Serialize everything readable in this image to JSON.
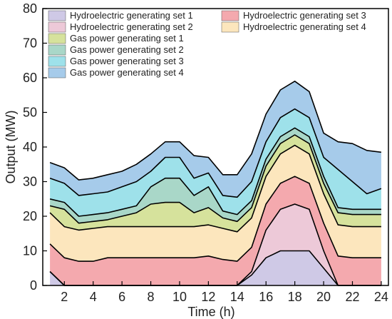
{
  "chart_data": {
    "type": "area",
    "stacked": true,
    "title": "",
    "xlabel": "Time (h)",
    "ylabel": "Output (MW)",
    "xlim": [
      0.5,
      24.5
    ],
    "ylim": [
      0,
      80
    ],
    "xticks": [
      2,
      4,
      6,
      8,
      10,
      12,
      14,
      16,
      18,
      20,
      22,
      24
    ],
    "yticks": [
      0,
      10,
      20,
      30,
      40,
      50,
      60,
      70,
      80
    ],
    "grid": false,
    "legend_position": "top-left",
    "x": [
      1,
      2,
      3,
      4,
      5,
      6,
      7,
      8,
      9,
      10,
      11,
      12,
      13,
      14,
      15,
      16,
      17,
      18,
      19,
      20,
      21,
      22,
      23,
      24
    ],
    "series": [
      {
        "name": "Hydroelectric generating set 1",
        "color": "#cfc9e6",
        "values": [
          4,
          0,
          0,
          0,
          0,
          0,
          0,
          0,
          0,
          0,
          0,
          0,
          0,
          0,
          3,
          8,
          10,
          10,
          10,
          5,
          0,
          0,
          0,
          0
        ]
      },
      {
        "name": "Hydroelectric generating set 2",
        "color": "#edc9d8",
        "values": [
          0,
          0,
          0,
          0,
          0,
          0,
          0,
          0,
          0,
          0,
          0,
          0,
          0,
          0,
          1,
          8,
          12,
          13.5,
          12,
          5,
          0,
          0,
          0,
          0
        ]
      },
      {
        "name": "Hydroelectric generating set 3",
        "color": "#f4a9ae",
        "values": [
          8,
          8,
          7,
          7,
          8,
          8,
          8,
          8,
          8,
          8,
          8,
          8.5,
          7.5,
          7,
          7,
          7.5,
          7.5,
          8,
          7.5,
          8,
          8.5,
          8,
          8,
          8
        ]
      },
      {
        "name": "Hydroelectric generating set 4",
        "color": "#fce6bd",
        "values": [
          9,
          9,
          9,
          9.5,
          9,
          9,
          9,
          9,
          9,
          9,
          9,
          9,
          9,
          8.5,
          8.5,
          8,
          8.5,
          9,
          8.5,
          8.5,
          9,
          9,
          9,
          9
        ]
      },
      {
        "name": "Gas power generating set 1",
        "color": "#d6e29c",
        "values": [
          2,
          5,
          2,
          2,
          2,
          3,
          4,
          6.5,
          7,
          7,
          4,
          5,
          3,
          3,
          3,
          3,
          3,
          3,
          3,
          3,
          3.5,
          3.5,
          3.5,
          3.5
        ]
      },
      {
        "name": "Gas power generating set 2",
        "color": "#a9d7c8",
        "values": [
          2,
          2,
          2,
          2,
          2,
          2,
          2,
          5,
          7,
          7,
          5,
          6,
          2,
          2,
          2,
          2,
          2,
          2,
          2,
          2,
          1.5,
          1.5,
          1.5,
          1.5
        ]
      },
      {
        "name": "Gas power generating set 3",
        "color": "#9ee1ea",
        "values": [
          6,
          5.5,
          6,
          6,
          6,
          6.5,
          7,
          4.5,
          6,
          6,
          5,
          4,
          4.5,
          5,
          5.5,
          5,
          5.5,
          5.5,
          5.5,
          5.5,
          11,
          8,
          4.5,
          6
        ]
      },
      {
        "name": "Gas power generating set 4",
        "color": "#a6cbea",
        "values": [
          4.5,
          4.5,
          4.5,
          4.5,
          5,
          4.5,
          5,
          5,
          4.5,
          4.5,
          6.5,
          4.5,
          6,
          6.5,
          8,
          8,
          8,
          8,
          7.5,
          7,
          8,
          11,
          12.5,
          10.5
        ]
      }
    ]
  }
}
